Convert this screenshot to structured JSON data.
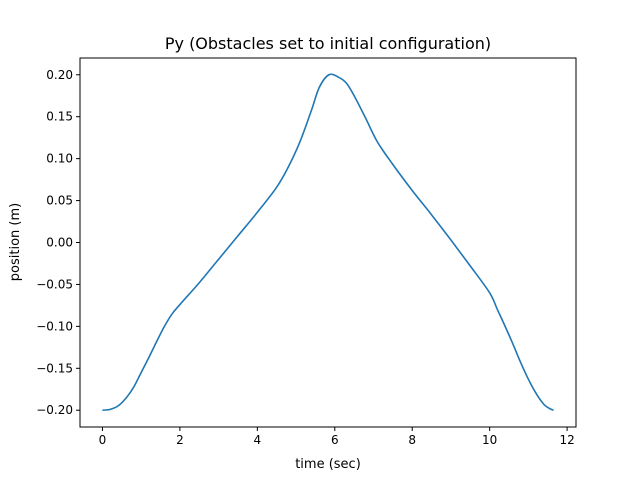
{
  "chart_data": {
    "type": "line",
    "title": "Py (Obstacles set to initial configuration)",
    "xlabel": "time (sec)",
    "ylabel": "position (m)",
    "xlim": [
      -0.58,
      12.23
    ],
    "ylim": [
      -0.22,
      0.22
    ],
    "xticks": [
      0,
      2,
      4,
      6,
      8,
      10,
      12
    ],
    "xtick_labels": [
      "0",
      "2",
      "4",
      "6",
      "8",
      "10",
      "12"
    ],
    "yticks": [
      -0.2,
      -0.15,
      -0.1,
      -0.05,
      0.0,
      0.05,
      0.1,
      0.15,
      0.2
    ],
    "ytick_labels": [
      "−0.20",
      "−0.15",
      "−0.10",
      "−0.05",
      "0.00",
      "0.05",
      "0.10",
      "0.15",
      "0.20"
    ],
    "grid": false,
    "legend": "none",
    "line_color": "#1f77b4",
    "series": [
      {
        "x": [
          0.0,
          0.2,
          0.4,
          0.6,
          0.8,
          1.0,
          1.2,
          1.4,
          1.6,
          1.8,
          2.0,
          2.5,
          3.0,
          3.5,
          4.0,
          4.5,
          4.8,
          5.1,
          5.4,
          5.6,
          5.85,
          6.1,
          6.3,
          6.5,
          6.8,
          7.1,
          7.5,
          8.0,
          8.5,
          9.0,
          9.5,
          10.0,
          10.2,
          10.4,
          10.6,
          10.8,
          11.0,
          11.2,
          11.4,
          11.55,
          11.65
        ],
        "y": [
          -0.2,
          -0.199,
          -0.195,
          -0.186,
          -0.173,
          -0.155,
          -0.137,
          -0.118,
          -0.1,
          -0.085,
          -0.074,
          -0.048,
          -0.02,
          0.008,
          0.036,
          0.066,
          0.09,
          0.12,
          0.158,
          0.185,
          0.2,
          0.197,
          0.19,
          0.175,
          0.148,
          0.12,
          0.093,
          0.062,
          0.033,
          0.003,
          -0.028,
          -0.06,
          -0.08,
          -0.1,
          -0.121,
          -0.143,
          -0.163,
          -0.18,
          -0.193,
          -0.198,
          -0.2
        ]
      }
    ]
  }
}
